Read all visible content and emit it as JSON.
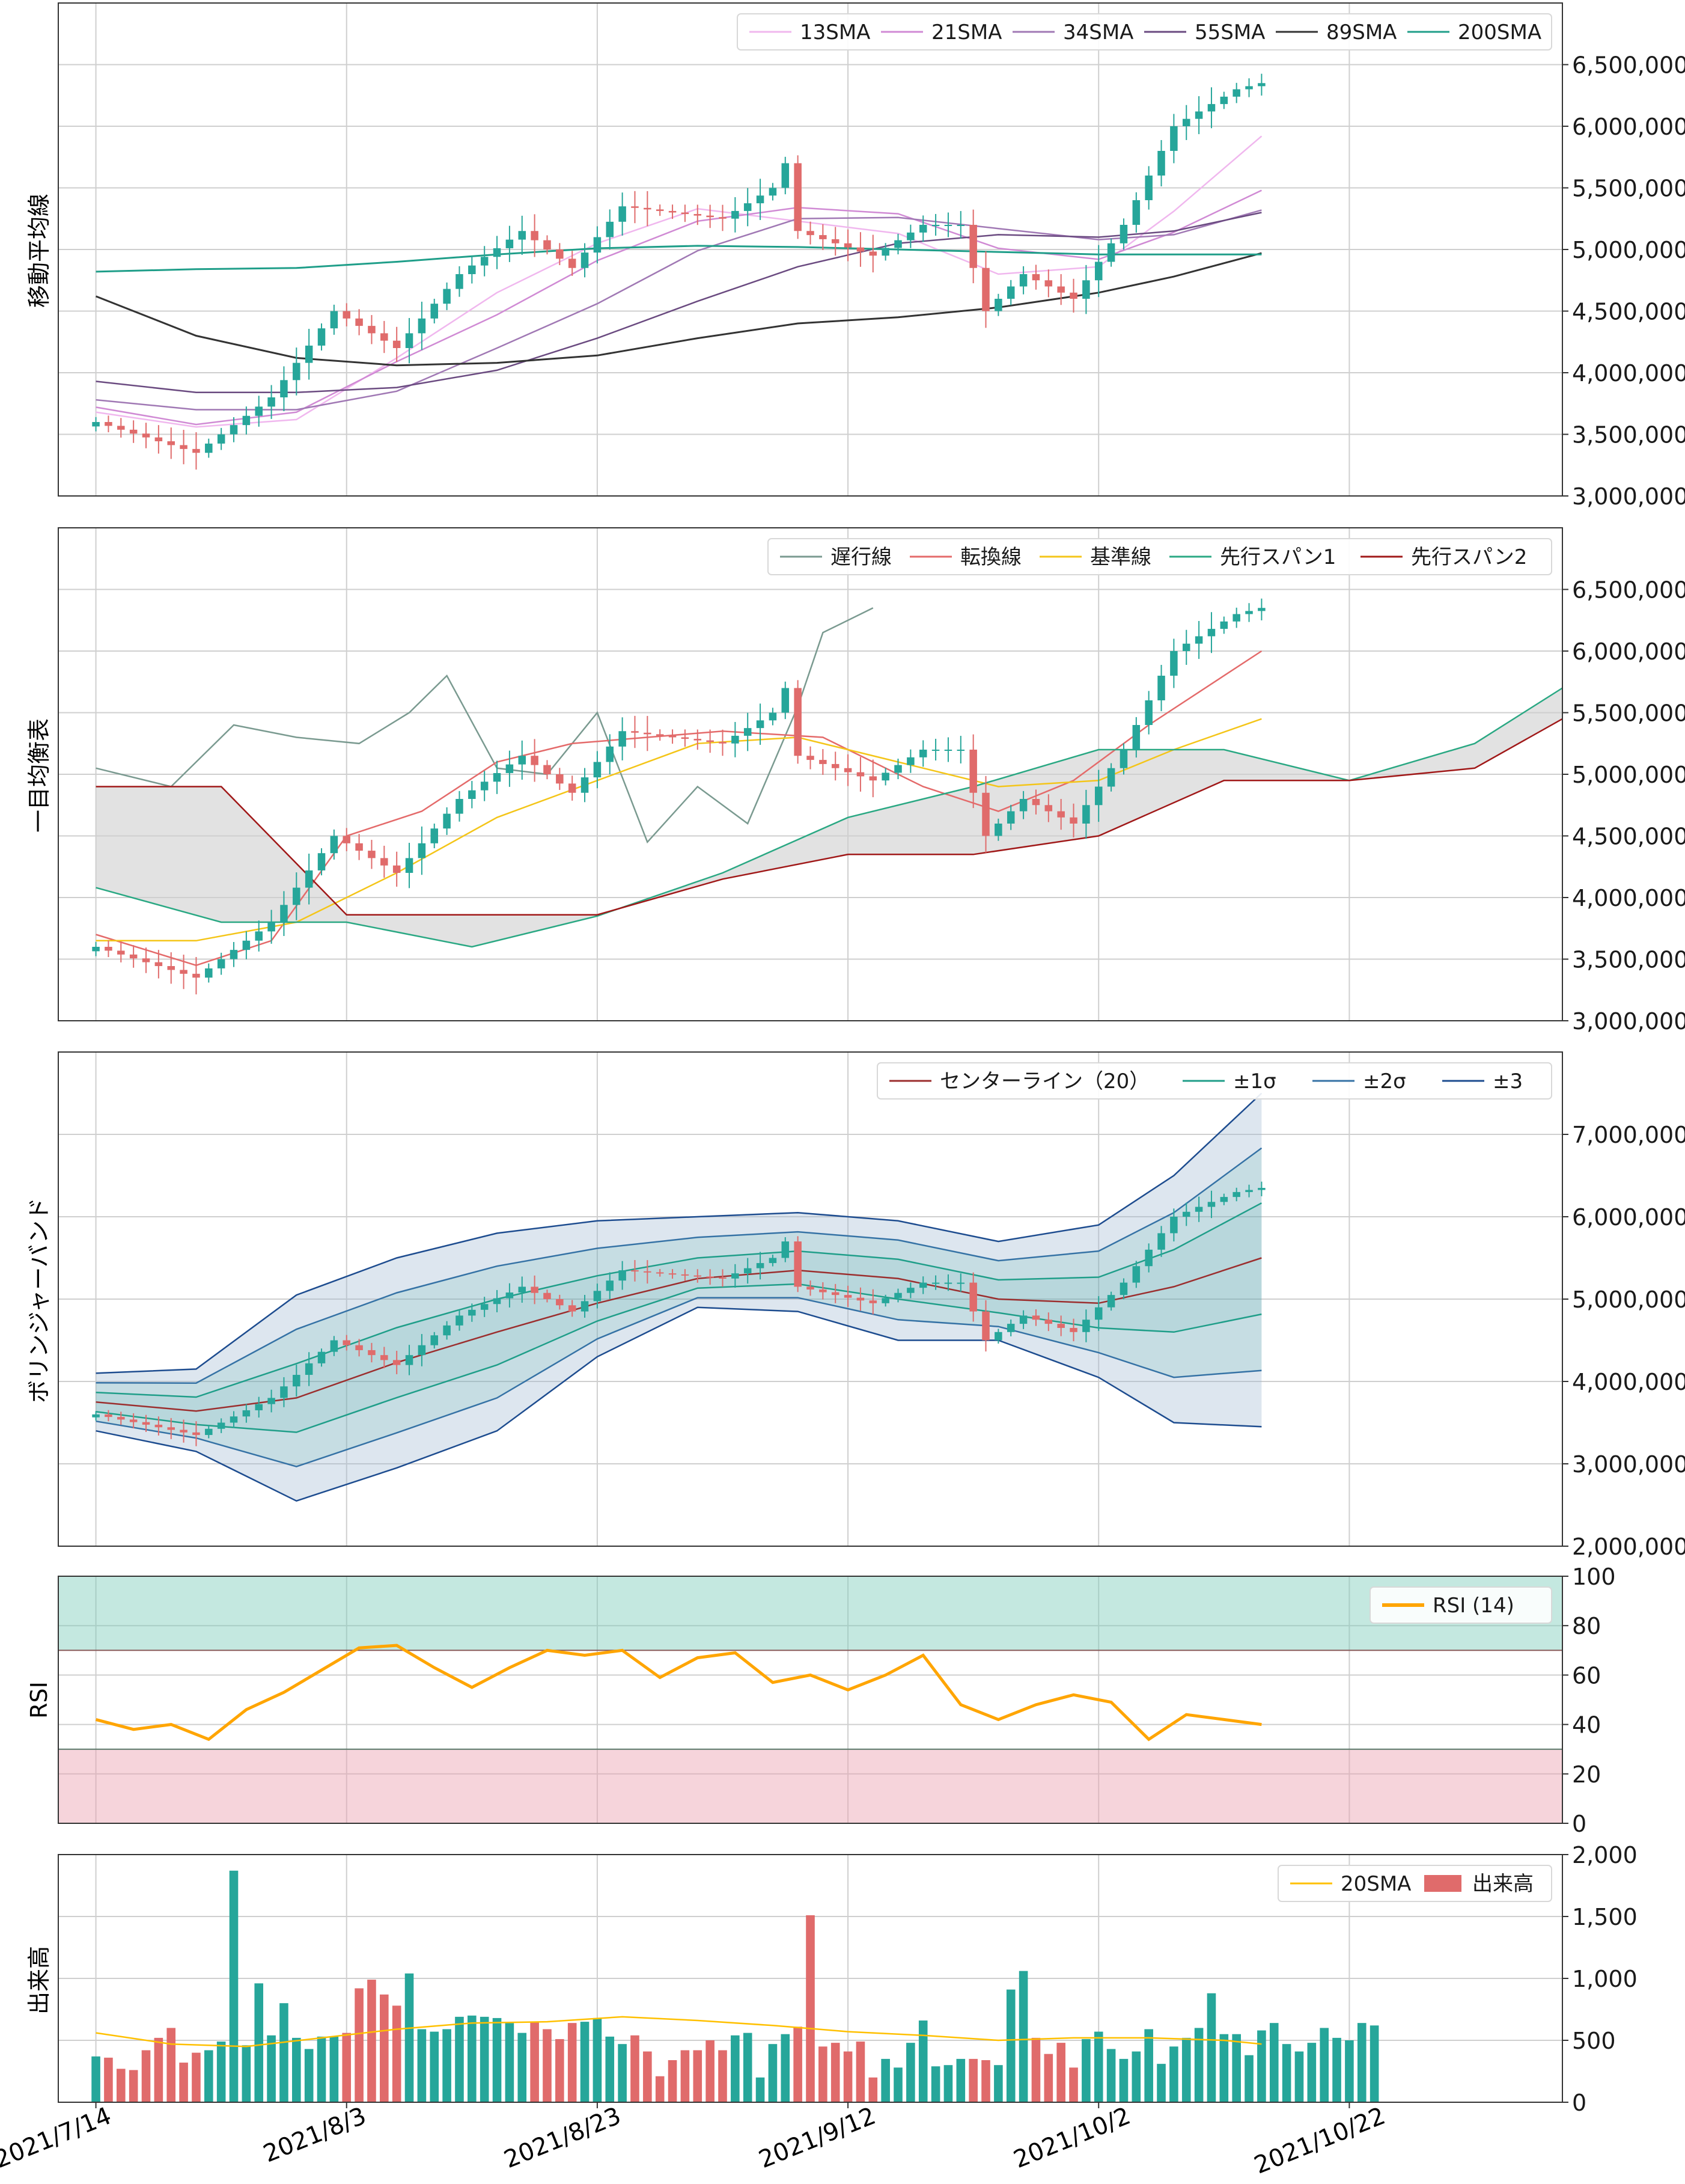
{
  "colors": {
    "up": "#26a69a",
    "down": "#e06b6b",
    "grid": "#cfcfcf",
    "frame": "#333333",
    "sma13": "#f0b7ee",
    "sma21": "#d08ad4",
    "sma34": "#a078b4",
    "sma55": "#6a4a80",
    "sma89": "#333333",
    "sma200": "#1f9e89",
    "chikou": "#7a9a90",
    "tenkan": "#e46a6a",
    "kijun": "#f4c518",
    "spanA": "#2aa883",
    "spanB": "#a01818",
    "cloud": "#cfcfcf",
    "bb_center": "#9b2e2e",
    "bb1": "#1f9e89",
    "bb2": "#3572a5",
    "bb3": "#1d4c8f",
    "bb_fill": "#9eb6d2",
    "rsi": "#ffa500",
    "rsi_hi": "#7cccba",
    "rsi_lo": "#eaa0b0",
    "vol_sma": "#ffc000"
  },
  "x_axis": {
    "dates": [
      "2021/7/14",
      "2021/8/3",
      "2021/8/23",
      "2021/9/12",
      "2021/10/2",
      "2021/10/22"
    ],
    "date_range": [
      "2021-07-11",
      "2021-11-08"
    ],
    "data_start": "2021-07-14",
    "data_end": "2021-10-15"
  },
  "chart_data": [
    {
      "type": "candlestick+line",
      "ylabel": "移動平均線",
      "ylim": [
        3000000,
        7000000
      ],
      "ticks": [
        "3,000,000",
        "3,500,000",
        "4,000,000",
        "4,500,000",
        "5,000,000",
        "5,500,000",
        "6,000,000",
        "6,500,000"
      ],
      "tick_values": [
        3000000,
        3500000,
        4000000,
        4500000,
        5000000,
        5500000,
        6000000,
        6500000
      ],
      "legend": [
        "13SMA",
        "21SMA",
        "34SMA",
        "55SMA",
        "89SMA",
        "200SMA"
      ],
      "legend_placement": "top-right",
      "grid": true,
      "series": [
        {
          "name": "13SMA",
          "x": [
            "2021-07-14",
            "2021-07-22",
            "2021-07-30",
            "2021-08-07",
            "2021-08-15",
            "2021-08-23",
            "2021-08-31",
            "2021-09-08",
            "2021-09-16",
            "2021-09-24",
            "2021-10-02",
            "2021-10-08",
            "2021-10-15"
          ],
          "values": [
            3680000,
            3560000,
            3620000,
            4120000,
            4650000,
            5050000,
            5330000,
            5230000,
            5130000,
            4800000,
            4860000,
            5310000,
            5920000
          ]
        },
        {
          "name": "21SMA",
          "x": [
            "2021-07-14",
            "2021-07-22",
            "2021-07-30",
            "2021-08-07",
            "2021-08-15",
            "2021-08-23",
            "2021-08-31",
            "2021-09-08",
            "2021-09-16",
            "2021-09-24",
            "2021-10-02",
            "2021-10-08",
            "2021-10-15"
          ],
          "values": [
            3720000,
            3580000,
            3680000,
            4090000,
            4470000,
            4910000,
            5230000,
            5340000,
            5290000,
            5010000,
            4920000,
            5140000,
            5480000
          ]
        },
        {
          "name": "34SMA",
          "x": [
            "2021-07-14",
            "2021-07-22",
            "2021-07-30",
            "2021-08-07",
            "2021-08-15",
            "2021-08-23",
            "2021-08-31",
            "2021-09-08",
            "2021-09-16",
            "2021-09-24",
            "2021-10-02",
            "2021-10-08",
            "2021-10-15"
          ],
          "values": [
            3780000,
            3700000,
            3700000,
            3850000,
            4200000,
            4560000,
            4990000,
            5250000,
            5260000,
            5170000,
            5080000,
            5120000,
            5320000
          ]
        },
        {
          "name": "55SMA",
          "x": [
            "2021-07-14",
            "2021-07-22",
            "2021-07-30",
            "2021-08-07",
            "2021-08-15",
            "2021-08-23",
            "2021-08-31",
            "2021-09-08",
            "2021-09-16",
            "2021-09-24",
            "2021-10-02",
            "2021-10-08",
            "2021-10-15"
          ],
          "values": [
            3930000,
            3840000,
            3840000,
            3880000,
            4020000,
            4280000,
            4580000,
            4860000,
            5050000,
            5120000,
            5100000,
            5150000,
            5300000
          ]
        },
        {
          "name": "89SMA",
          "x": [
            "2021-07-14",
            "2021-07-22",
            "2021-07-30",
            "2021-08-07",
            "2021-08-15",
            "2021-08-23",
            "2021-08-31",
            "2021-09-08",
            "2021-09-16",
            "2021-09-24",
            "2021-10-02",
            "2021-10-08",
            "2021-10-15"
          ],
          "values": [
            4620000,
            4300000,
            4120000,
            4060000,
            4080000,
            4140000,
            4280000,
            4400000,
            4450000,
            4530000,
            4650000,
            4780000,
            4970000
          ]
        },
        {
          "name": "200SMA",
          "x": [
            "2021-07-14",
            "2021-07-22",
            "2021-07-30",
            "2021-08-07",
            "2021-08-15",
            "2021-08-23",
            "2021-08-31",
            "2021-09-08",
            "2021-09-16",
            "2021-09-24",
            "2021-10-02",
            "2021-10-08",
            "2021-10-15"
          ],
          "values": [
            4820000,
            4840000,
            4850000,
            4900000,
            4960000,
            5010000,
            5030000,
            5020000,
            5000000,
            4980000,
            4960000,
            4960000,
            4960000
          ]
        }
      ]
    },
    {
      "type": "candlestick+line",
      "ylabel": "一目均衡表",
      "ylim": [
        3000000,
        7000000
      ],
      "ticks": [
        "3,000,000",
        "3,500,000",
        "4,000,000",
        "4,500,000",
        "5,000,000",
        "5,500,000",
        "6,000,000",
        "6,500,000"
      ],
      "tick_values": [
        3000000,
        3500000,
        4000000,
        4500000,
        5000000,
        5500000,
        6000000,
        6500000
      ],
      "legend": [
        "遅行線",
        "転換線",
        "基準線",
        "先行スパン1",
        "先行スパン2"
      ],
      "legend_placement": "top-right",
      "grid": true,
      "series": [
        {
          "name": "遅行線",
          "x": [
            "2021-07-14",
            "2021-07-20",
            "2021-07-25",
            "2021-07-30",
            "2021-08-04",
            "2021-08-08",
            "2021-08-11",
            "2021-08-15",
            "2021-08-19",
            "2021-08-23",
            "2021-08-27",
            "2021-08-31",
            "2021-09-04",
            "2021-09-08",
            "2021-09-10",
            "2021-09-14"
          ],
          "values": [
            5050000,
            4900000,
            5400000,
            5300000,
            5250000,
            5500000,
            5800000,
            5050000,
            5000000,
            5500000,
            4450000,
            4900000,
            4600000,
            5550000,
            6150000,
            6350000
          ]
        },
        {
          "name": "転換線",
          "x": [
            "2021-07-14",
            "2021-07-22",
            "2021-07-28",
            "2021-08-03",
            "2021-08-09",
            "2021-08-15",
            "2021-08-21",
            "2021-08-27",
            "2021-09-02",
            "2021-09-10",
            "2021-09-18",
            "2021-09-24",
            "2021-09-30",
            "2021-10-06",
            "2021-10-15"
          ],
          "values": [
            3700000,
            3450000,
            3650000,
            4500000,
            4700000,
            5100000,
            5250000,
            5300000,
            5350000,
            5300000,
            4900000,
            4700000,
            4950000,
            5400000,
            6000000
          ]
        },
        {
          "name": "基準線",
          "x": [
            "2021-07-14",
            "2021-07-22",
            "2021-07-30",
            "2021-08-07",
            "2021-08-15",
            "2021-08-23",
            "2021-08-31",
            "2021-09-08",
            "2021-09-16",
            "2021-09-24",
            "2021-10-02",
            "2021-10-08",
            "2021-10-15"
          ],
          "values": [
            3650000,
            3650000,
            3800000,
            4200000,
            4650000,
            4950000,
            5250000,
            5300000,
            5100000,
            4900000,
            4950000,
            5200000,
            5450000
          ]
        },
        {
          "name": "先行スパン1",
          "x": [
            "2021-07-14",
            "2021-07-24",
            "2021-08-03",
            "2021-08-13",
            "2021-08-23",
            "2021-09-02",
            "2021-09-12",
            "2021-09-22",
            "2021-10-02",
            "2021-10-12",
            "2021-10-22",
            "2021-11-01",
            "2021-11-08"
          ],
          "values": [
            4080000,
            3800000,
            3800000,
            3600000,
            3850000,
            4200000,
            4650000,
            4900000,
            5200000,
            5200000,
            4950000,
            5250000,
            5700000
          ]
        },
        {
          "name": "先行スパン2",
          "x": [
            "2021-07-14",
            "2021-07-24",
            "2021-08-03",
            "2021-08-13",
            "2021-08-23",
            "2021-09-02",
            "2021-09-12",
            "2021-09-22",
            "2021-10-02",
            "2021-10-12",
            "2021-10-22",
            "2021-11-01",
            "2021-11-08"
          ],
          "values": [
            4900000,
            4900000,
            3860000,
            3860000,
            3860000,
            4150000,
            4350000,
            4350000,
            4500000,
            4950000,
            4950000,
            5050000,
            5450000
          ]
        }
      ]
    },
    {
      "type": "candlestick+line",
      "ylabel": "ボリンジャーバンド",
      "ylim": [
        2000000,
        8000000
      ],
      "ticks": [
        "2,000,000",
        "3,000,000",
        "4,000,000",
        "5,000,000",
        "6,000,000",
        "7,000,000"
      ],
      "tick_values": [
        2000000,
        3000000,
        4000000,
        5000000,
        6000000,
        7000000
      ],
      "legend": [
        "センターライン（20）",
        "±1σ",
        "±2σ",
        "±3"
      ],
      "legend_placement": "top-right",
      "grid": true,
      "series": [
        {
          "name": "センターライン（20）",
          "x": [
            "2021-07-14",
            "2021-07-22",
            "2021-07-30",
            "2021-08-07",
            "2021-08-15",
            "2021-08-23",
            "2021-08-31",
            "2021-09-08",
            "2021-09-16",
            "2021-09-24",
            "2021-10-02",
            "2021-10-08",
            "2021-10-15"
          ],
          "values": [
            3750000,
            3640000,
            3800000,
            4230000,
            4600000,
            4950000,
            5250000,
            5350000,
            5250000,
            5000000,
            4950000,
            5150000,
            5500000
          ]
        },
        {
          "name": "upper3",
          "x": [
            "2021-07-14",
            "2021-07-22",
            "2021-07-30",
            "2021-08-07",
            "2021-08-15",
            "2021-08-23",
            "2021-08-31",
            "2021-09-08",
            "2021-09-16",
            "2021-09-24",
            "2021-10-02",
            "2021-10-08",
            "2021-10-15"
          ],
          "values": [
            4100000,
            4150000,
            5050000,
            5500000,
            5800000,
            5950000,
            6000000,
            6050000,
            5950000,
            5700000,
            5900000,
            6500000,
            7500000
          ]
        },
        {
          "name": "lower3",
          "x": [
            "2021-07-14",
            "2021-07-22",
            "2021-07-30",
            "2021-08-07",
            "2021-08-15",
            "2021-08-23",
            "2021-08-31",
            "2021-09-08",
            "2021-09-16",
            "2021-09-24",
            "2021-10-02",
            "2021-10-08",
            "2021-10-15"
          ],
          "values": [
            3400000,
            3150000,
            2550000,
            2950000,
            3400000,
            4300000,
            4900000,
            4850000,
            4500000,
            4500000,
            4050000,
            3500000,
            3450000
          ]
        }
      ]
    },
    {
      "type": "line",
      "ylabel": "RSI",
      "ylim": [
        0,
        100
      ],
      "ticks": [
        "0",
        "20",
        "40",
        "60",
        "80",
        "100"
      ],
      "tick_values": [
        0,
        20,
        40,
        60,
        80,
        100
      ],
      "legend": [
        "RSI (14)"
      ],
      "legend_placement": "top-right",
      "zones": {
        "overbought": [
          70,
          100
        ],
        "oversold": [
          0,
          30
        ]
      },
      "series": [
        {
          "name": "RSI (14)",
          "x": [
            "2021-07-14",
            "2021-07-17",
            "2021-07-20",
            "2021-07-23",
            "2021-07-26",
            "2021-07-29",
            "2021-08-01",
            "2021-08-04",
            "2021-08-07",
            "2021-08-10",
            "2021-08-13",
            "2021-08-16",
            "2021-08-19",
            "2021-08-22",
            "2021-08-25",
            "2021-08-28",
            "2021-08-31",
            "2021-09-03",
            "2021-09-06",
            "2021-09-09",
            "2021-09-12",
            "2021-09-15",
            "2021-09-18",
            "2021-09-21",
            "2021-09-24",
            "2021-09-27",
            "2021-09-30",
            "2021-10-03",
            "2021-10-06",
            "2021-10-09",
            "2021-10-12",
            "2021-10-15"
          ],
          "values": [
            42,
            38,
            40,
            34,
            46,
            53,
            62,
            71,
            72,
            63,
            55,
            63,
            70,
            68,
            70,
            59,
            67,
            69,
            57,
            60,
            54,
            60,
            68,
            48,
            42,
            48,
            52,
            49,
            34,
            44,
            42,
            40
          ]
        }
      ]
    },
    {
      "type": "bar+line",
      "ylabel": "出来高",
      "ylim": [
        0,
        2000
      ],
      "ticks": [
        "0",
        "500",
        "1,000",
        "1,500",
        "2,000"
      ],
      "tick_values": [
        0,
        500,
        1000,
        1500,
        2000
      ],
      "legend": [
        "20SMA",
        "出来高"
      ],
      "legend_placement": "top-right",
      "series": [
        {
          "name": "出来高",
          "values": [
            370,
            360,
            270,
            260,
            420,
            520,
            600,
            320,
            400,
            420,
            490,
            1870,
            460,
            960,
            540,
            800,
            520,
            430,
            530,
            530,
            560,
            920,
            990,
            870,
            780,
            1040,
            590,
            570,
            590,
            690,
            700,
            690,
            680,
            640,
            560,
            650,
            590,
            510,
            640,
            650,
            680,
            530,
            470,
            540,
            410,
            210,
            340,
            420,
            420,
            500,
            420,
            540,
            560,
            200,
            470,
            550,
            610,
            1510,
            450,
            480,
            410,
            490,
            200,
            350,
            280,
            480,
            660,
            290,
            300,
            350,
            350,
            340,
            300,
            910,
            1060,
            520,
            390,
            480,
            280,
            510,
            570,
            430,
            350,
            410,
            590,
            310,
            450,
            520,
            600,
            880,
            550,
            550,
            380,
            580,
            640,
            470,
            410,
            480,
            600,
            520,
            500,
            640,
            620
          ]
        },
        {
          "name": "20SMA",
          "x": [
            "2021-07-14",
            "2021-07-20",
            "2021-07-26",
            "2021-08-01",
            "2021-08-07",
            "2021-08-13",
            "2021-08-19",
            "2021-08-25",
            "2021-08-31",
            "2021-09-06",
            "2021-09-12",
            "2021-09-18",
            "2021-09-24",
            "2021-09-30",
            "2021-10-06",
            "2021-10-12",
            "2021-10-15"
          ],
          "values": [
            560,
            470,
            450,
            520,
            590,
            640,
            650,
            690,
            660,
            620,
            570,
            540,
            500,
            520,
            520,
            500,
            470
          ]
        }
      ]
    }
  ]
}
